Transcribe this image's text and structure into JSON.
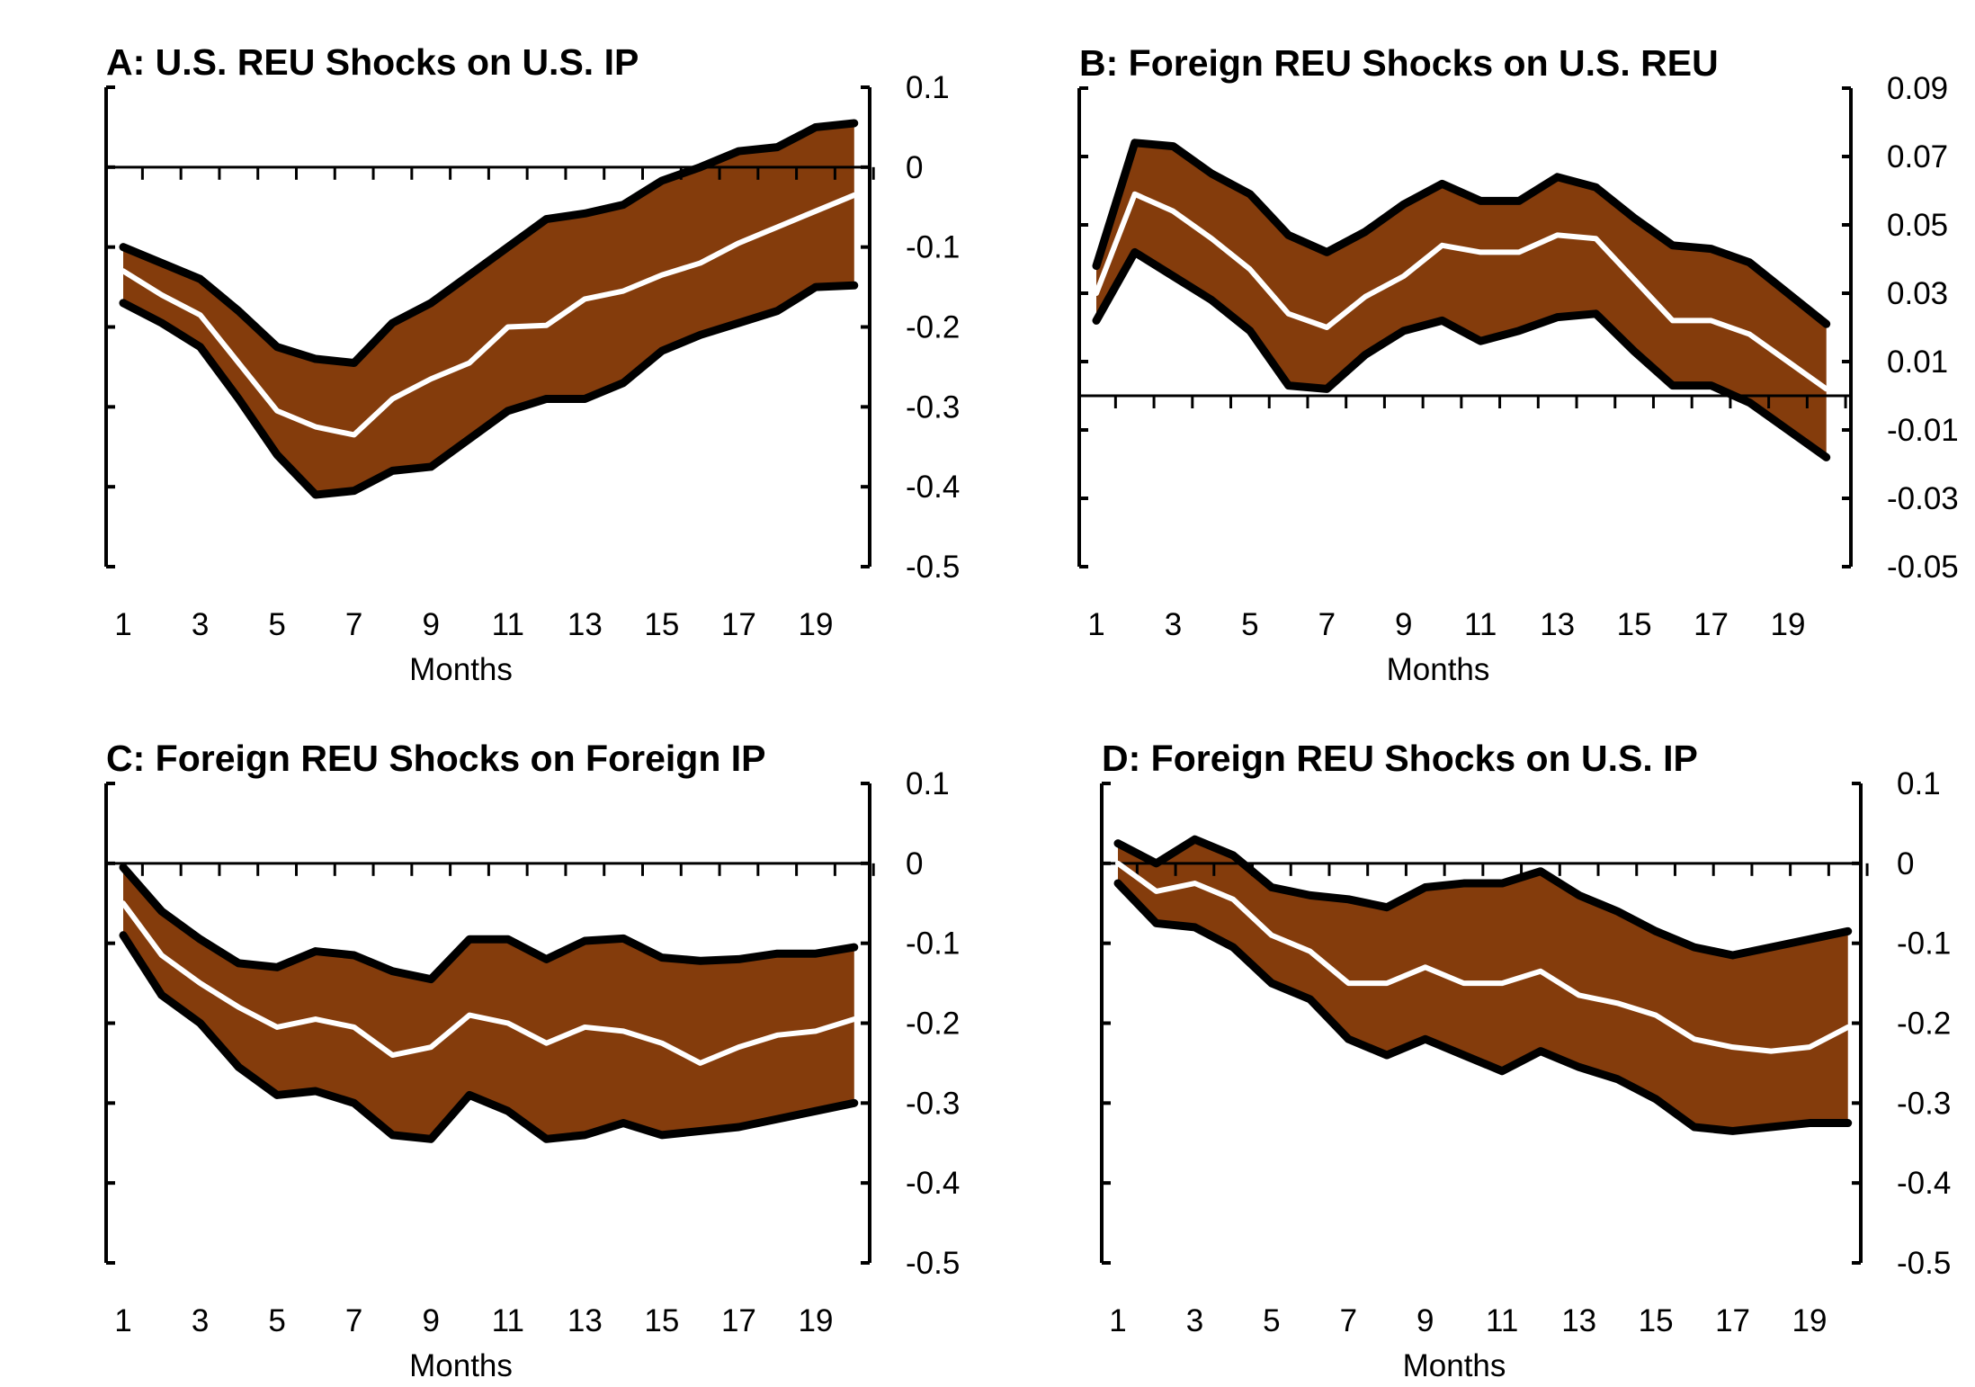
{
  "colors": {
    "band": "#843C0C",
    "bounds": "#000000",
    "median": "#FFFFFF"
  },
  "chart_data": [
    {
      "type": "area",
      "title": "A: U.S. REU Shocks on U.S. IP",
      "xlabel": "Months",
      "x": [
        1,
        2,
        3,
        4,
        5,
        6,
        7,
        8,
        9,
        10,
        11,
        12,
        13,
        14,
        15,
        16,
        17,
        18,
        19,
        20
      ],
      "xtick_labels": [
        "1",
        "3",
        "5",
        "7",
        "9",
        "11",
        "13",
        "15",
        "17",
        "19"
      ],
      "ylim": [
        -0.5,
        0.1
      ],
      "yticks": [
        0.1,
        0,
        -0.1,
        -0.2,
        -0.3,
        -0.4,
        -0.5
      ],
      "ytick_labels": [
        "0.1",
        "0",
        "-0.1",
        "-0.2",
        "-0.3",
        "-0.4",
        "-0.5"
      ],
      "y_axis_side": "right",
      "series": [
        {
          "role": "upper",
          "values": [
            -0.1,
            -0.12,
            -0.14,
            -0.18,
            -0.225,
            -0.24,
            -0.245,
            -0.195,
            -0.17,
            -0.135,
            -0.1,
            -0.065,
            -0.058,
            -0.047,
            -0.017,
            0.0,
            0.02,
            0.025,
            0.05,
            0.055
          ]
        },
        {
          "role": "median",
          "values": [
            -0.13,
            -0.16,
            -0.185,
            -0.245,
            -0.305,
            -0.325,
            -0.335,
            -0.29,
            -0.265,
            -0.245,
            -0.2,
            -0.198,
            -0.165,
            -0.155,
            -0.135,
            -0.12,
            -0.095,
            -0.075,
            -0.055,
            -0.035
          ]
        },
        {
          "role": "lower",
          "values": [
            -0.17,
            -0.195,
            -0.225,
            -0.29,
            -0.36,
            -0.41,
            -0.405,
            -0.38,
            -0.375,
            -0.34,
            -0.305,
            -0.29,
            -0.29,
            -0.27,
            -0.23,
            -0.21,
            -0.195,
            -0.18,
            -0.15,
            -0.148
          ]
        }
      ]
    },
    {
      "type": "area",
      "title": "B: Foreign REU Shocks on U.S. REU",
      "xlabel": "Months",
      "x": [
        1,
        2,
        3,
        4,
        5,
        6,
        7,
        8,
        9,
        10,
        11,
        12,
        13,
        14,
        15,
        16,
        17,
        18,
        19,
        20
      ],
      "xtick_labels": [
        "1",
        "3",
        "5",
        "7",
        "9",
        "11",
        "13",
        "15",
        "17",
        "19"
      ],
      "ylim": [
        -0.05,
        0.09
      ],
      "yticks": [
        0.09,
        0.07,
        0.05,
        0.03,
        0.01,
        -0.01,
        -0.03,
        -0.05
      ],
      "ytick_labels": [
        "0.09",
        "0.07",
        "0.05",
        "0.03",
        "0.01",
        "-0.01",
        "-0.03",
        "-0.05"
      ],
      "y_axis_side": "right",
      "series": [
        {
          "role": "upper",
          "values": [
            0.038,
            0.074,
            0.073,
            0.065,
            0.059,
            0.047,
            0.042,
            0.048,
            0.056,
            0.062,
            0.057,
            0.057,
            0.064,
            0.061,
            0.052,
            0.044,
            0.043,
            0.039,
            0.03,
            0.021
          ]
        },
        {
          "role": "median",
          "values": [
            0.03,
            0.059,
            0.054,
            0.046,
            0.037,
            0.024,
            0.02,
            0.029,
            0.035,
            0.044,
            0.042,
            0.042,
            0.047,
            0.046,
            0.034,
            0.022,
            0.022,
            0.018,
            0.01,
            0.002
          ]
        },
        {
          "role": "lower",
          "values": [
            0.022,
            0.042,
            0.035,
            0.028,
            0.019,
            0.003,
            0.002,
            0.012,
            0.019,
            0.022,
            0.016,
            0.019,
            0.023,
            0.024,
            0.013,
            0.003,
            0.003,
            -0.002,
            -0.01,
            -0.018
          ]
        }
      ]
    },
    {
      "type": "area",
      "title": "C: Foreign REU Shocks on Foreign IP",
      "xlabel": "Months",
      "x": [
        1,
        2,
        3,
        4,
        5,
        6,
        7,
        8,
        9,
        10,
        11,
        12,
        13,
        14,
        15,
        16,
        17,
        18,
        19,
        20
      ],
      "xtick_labels": [
        "1",
        "3",
        "5",
        "7",
        "9",
        "11",
        "13",
        "15",
        "17",
        "19"
      ],
      "ylim": [
        -0.5,
        0.1
      ],
      "yticks": [
        0.1,
        0,
        -0.1,
        -0.2,
        -0.3,
        -0.4,
        -0.5
      ],
      "ytick_labels": [
        "0.1",
        "0",
        "-0.1",
        "-0.2",
        "-0.3",
        "-0.4",
        "-0.5"
      ],
      "y_axis_side": "right",
      "series": [
        {
          "role": "upper",
          "values": [
            -0.005,
            -0.06,
            -0.095,
            -0.125,
            -0.13,
            -0.11,
            -0.115,
            -0.135,
            -0.145,
            -0.095,
            -0.095,
            -0.12,
            -0.097,
            -0.094,
            -0.118,
            -0.122,
            -0.12,
            -0.113,
            -0.113,
            -0.105
          ]
        },
        {
          "role": "median",
          "values": [
            -0.05,
            -0.115,
            -0.15,
            -0.18,
            -0.205,
            -0.195,
            -0.205,
            -0.24,
            -0.23,
            -0.19,
            -0.2,
            -0.225,
            -0.205,
            -0.21,
            -0.225,
            -0.25,
            -0.23,
            -0.215,
            -0.21,
            -0.195
          ]
        },
        {
          "role": "lower",
          "values": [
            -0.09,
            -0.165,
            -0.2,
            -0.255,
            -0.29,
            -0.285,
            -0.3,
            -0.34,
            -0.345,
            -0.29,
            -0.31,
            -0.345,
            -0.34,
            -0.325,
            -0.34,
            -0.335,
            -0.33,
            -0.32,
            -0.31,
            -0.3
          ]
        }
      ]
    },
    {
      "type": "area",
      "title": "D: Foreign REU Shocks on U.S. IP",
      "xlabel": "Months",
      "x": [
        1,
        2,
        3,
        4,
        5,
        6,
        7,
        8,
        9,
        10,
        11,
        12,
        13,
        14,
        15,
        16,
        17,
        18,
        19,
        20
      ],
      "xtick_labels": [
        "1",
        "3",
        "5",
        "7",
        "9",
        "11",
        "13",
        "15",
        "17",
        "19"
      ],
      "ylim": [
        -0.5,
        0.1
      ],
      "yticks": [
        0.1,
        0,
        -0.1,
        -0.2,
        -0.3,
        -0.4,
        -0.5
      ],
      "ytick_labels": [
        "0.1",
        "0",
        "-0.1",
        "-0.2",
        "-0.3",
        "-0.4",
        "-0.5"
      ],
      "y_axis_side": "right",
      "series": [
        {
          "role": "upper",
          "values": [
            0.025,
            0.0,
            0.03,
            0.01,
            -0.03,
            -0.04,
            -0.045,
            -0.055,
            -0.03,
            -0.025,
            -0.025,
            -0.01,
            -0.04,
            -0.06,
            -0.085,
            -0.105,
            -0.115,
            -0.105,
            -0.095,
            -0.085
          ]
        },
        {
          "role": "median",
          "values": [
            0.0,
            -0.035,
            -0.025,
            -0.045,
            -0.09,
            -0.11,
            -0.15,
            -0.15,
            -0.13,
            -0.15,
            -0.15,
            -0.135,
            -0.165,
            -0.175,
            -0.19,
            -0.22,
            -0.23,
            -0.235,
            -0.23,
            -0.205
          ]
        },
        {
          "role": "lower",
          "values": [
            -0.025,
            -0.075,
            -0.08,
            -0.105,
            -0.15,
            -0.17,
            -0.22,
            -0.24,
            -0.22,
            -0.24,
            -0.26,
            -0.235,
            -0.255,
            -0.27,
            -0.295,
            -0.33,
            -0.335,
            -0.33,
            -0.325,
            -0.325
          ]
        }
      ]
    }
  ]
}
